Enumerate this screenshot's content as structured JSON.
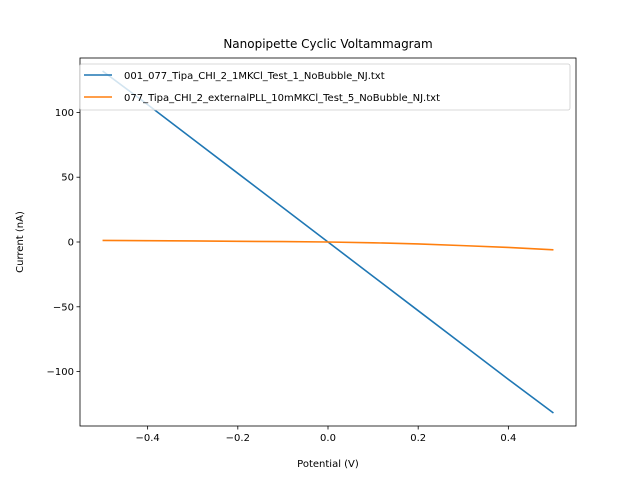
{
  "chart_data": {
    "type": "line",
    "title": "Nanopipette Cyclic Voltammagram",
    "xlabel": "Potential (V)",
    "ylabel": "Current (nA)",
    "xlim": [
      -0.55,
      0.55
    ],
    "ylim": [
      -142,
      142
    ],
    "xticks": [
      -0.4,
      -0.2,
      0.0,
      0.2,
      0.4
    ],
    "xtick_labels": [
      "−0.4",
      "−0.2",
      "0.0",
      "0.2",
      "0.4"
    ],
    "yticks": [
      -100,
      -50,
      0,
      50,
      100
    ],
    "ytick_labels": [
      "−100",
      "−50",
      "0",
      "50",
      "100"
    ],
    "grid": false,
    "legend_position": "top-left",
    "series": [
      {
        "name": "001_077_Tipa_CHI_2_1MKCl_Test_1_NoBubble_NJ.txt",
        "color": "#1f77b4",
        "x": [
          -0.5,
          -0.4,
          -0.3,
          -0.2,
          -0.1,
          0.0,
          0.1,
          0.2,
          0.3,
          0.4,
          0.5
        ],
        "y": [
          132,
          106,
          79.5,
          53,
          26.5,
          0,
          -26.5,
          -53,
          -79.5,
          -106,
          -132
        ]
      },
      {
        "name": "077_Tipa_CHI_2_externalPLL_10mMKCl_Test_5_NoBubble_NJ.txt",
        "color": "#ff7f0e",
        "x": [
          -0.5,
          -0.4,
          -0.3,
          -0.2,
          -0.1,
          0.0,
          0.1,
          0.2,
          0.3,
          0.4,
          0.5
        ],
        "y": [
          1.2,
          1.0,
          0.8,
          0.5,
          0.3,
          0.0,
          -0.6,
          -1.5,
          -2.8,
          -4.2,
          -6.0
        ]
      }
    ]
  }
}
